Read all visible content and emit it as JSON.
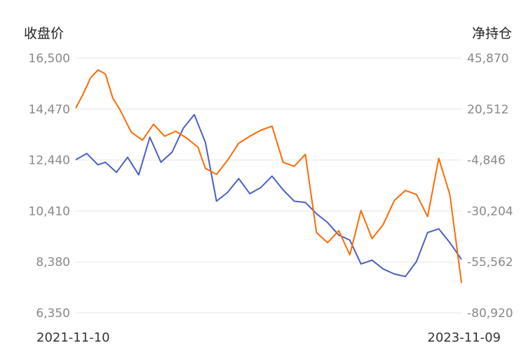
{
  "chart_data": {
    "type": "line",
    "title": "",
    "left_axis_title": "收盘价",
    "right_axis_title": "净持仓",
    "x_range": [
      "2021-11-10",
      "2023-11-09"
    ],
    "x_tick_labels": [
      "2021-11-10",
      "2023-11-09"
    ],
    "left_ticks": [
      "16,500",
      "14,470",
      "12,440",
      "10,410",
      "8,380",
      "6,350"
    ],
    "right_ticks": [
      "45,870",
      "20,512",
      "-4,846",
      "-30,204",
      "-55,562",
      "-80,920"
    ],
    "left_ylim": [
      6350,
      16500
    ],
    "right_ylim": [
      -80920,
      45870
    ],
    "grid": true,
    "colors": {
      "close": "#4c5fc0",
      "net": "#ff6a00"
    },
    "series": [
      {
        "name": "",
        "axis": "left",
        "color": "#4c5fc0",
        "x": [
          "2021-11-10",
          "2021-12-01",
          "2021-12-22",
          "2022-01-05",
          "2022-01-26",
          "2022-02-16",
          "2022-03-09",
          "2022-03-30",
          "2022-04-20",
          "2022-05-11",
          "2022-06-01",
          "2022-06-22",
          "2022-07-13",
          "2022-08-03",
          "2022-08-24",
          "2022-09-14",
          "2022-10-05",
          "2022-10-26",
          "2022-11-16",
          "2022-12-07",
          "2022-12-28",
          "2023-01-18",
          "2023-02-08",
          "2023-03-01",
          "2023-03-22",
          "2023-04-12",
          "2023-05-03",
          "2023-05-24",
          "2023-06-14",
          "2023-07-05",
          "2023-07-26",
          "2023-08-16",
          "2023-09-06",
          "2023-09-27",
          "2023-10-18",
          "2023-11-09"
        ],
        "values": [
          12450,
          12700,
          12250,
          12350,
          11950,
          12550,
          11850,
          13350,
          12350,
          12750,
          13700,
          14250,
          13150,
          10800,
          11150,
          11700,
          11100,
          11350,
          11800,
          11250,
          10800,
          10750,
          10300,
          9950,
          9450,
          9250,
          8300,
          8450,
          8100,
          7900,
          7800,
          8400,
          9550,
          9700,
          9150,
          8480
        ]
      },
      {
        "name": "",
        "axis": "right",
        "color": "#ff6a00",
        "x": [
          "2021-11-10",
          "2021-11-24",
          "2021-12-08",
          "2021-12-22",
          "2022-01-05",
          "2022-01-19",
          "2022-02-02",
          "2022-02-23",
          "2022-03-16",
          "2022-04-06",
          "2022-04-27",
          "2022-05-18",
          "2022-06-08",
          "2022-06-29",
          "2022-07-13",
          "2022-08-03",
          "2022-08-24",
          "2022-09-14",
          "2022-10-05",
          "2022-10-26",
          "2022-11-16",
          "2022-12-07",
          "2022-12-28",
          "2023-01-18",
          "2023-02-08",
          "2023-03-01",
          "2023-03-22",
          "2023-04-12",
          "2023-05-03",
          "2023-05-24",
          "2023-06-14",
          "2023-07-05",
          "2023-07-26",
          "2023-08-16",
          "2023-09-06",
          "2023-09-27",
          "2023-10-18",
          "2023-11-01",
          "2023-11-09"
        ],
        "values": [
          21000,
          28000,
          36000,
          40000,
          38000,
          26000,
          20000,
          9000,
          5000,
          13000,
          7000,
          9500,
          6000,
          1500,
          -9000,
          -12000,
          -5000,
          3500,
          7000,
          10000,
          12000,
          -6000,
          -8000,
          -2000,
          -41000,
          -46000,
          -40000,
          -52000,
          -30000,
          -44000,
          -37000,
          -25000,
          -20000,
          -22000,
          -33000,
          -4000,
          -22000,
          -50000,
          -66000
        ]
      }
    ]
  }
}
